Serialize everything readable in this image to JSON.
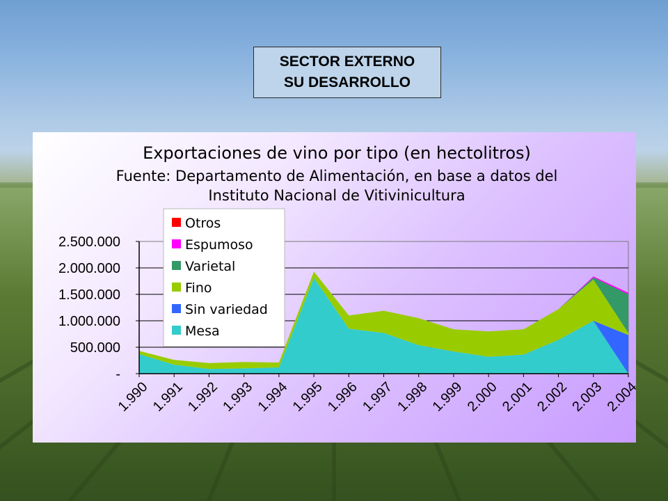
{
  "slide": {
    "heading_line1": "SECTOR EXTERNO",
    "heading_line2": "SU DESARROLLO"
  },
  "colors": {
    "Otros": "#ff0000",
    "Espumoso": "#ff00ff",
    "Varietal": "#339966",
    "Fino": "#99cc00",
    "Sin variedad": "#3366ff",
    "Mesa": "#33cccc"
  },
  "chart_data": {
    "type": "area",
    "stacked": true,
    "title": "Exportaciones de vino por tipo (en hectolitros)",
    "subtitle_line1": "Fuente: Departamento de Alimentación, en base a datos del",
    "subtitle_line2": "Instituto Nacional de Vitivinicultura",
    "categories": [
      "1.990",
      "1.991",
      "1.992",
      "1.993",
      "1.994",
      "1.995",
      "1.996",
      "1.997",
      "1.998",
      "1.999",
      "2.000",
      "2.001",
      "2.002",
      "2.003",
      "2.004"
    ],
    "y_ticks": [
      "-",
      "500.000",
      "1.000.000",
      "1.500.000",
      "2.000.000",
      "2.500.000"
    ],
    "ylim": [
      0,
      2500000
    ],
    "legend_position": "top-left",
    "legend_order": [
      "Otros",
      "Espumoso",
      "Varietal",
      "Fino",
      "Sin variedad",
      "Mesa"
    ],
    "series": [
      {
        "name": "Mesa",
        "values": [
          370000,
          170000,
          90000,
          100000,
          120000,
          1810000,
          850000,
          770000,
          540000,
          420000,
          320000,
          360000,
          640000,
          1000000,
          0
        ]
      },
      {
        "name": "Sin variedad",
        "values": [
          0,
          0,
          0,
          0,
          0,
          0,
          0,
          0,
          0,
          0,
          0,
          0,
          0,
          0,
          730000
        ]
      },
      {
        "name": "Fino",
        "values": [
          60000,
          90000,
          110000,
          120000,
          90000,
          120000,
          250000,
          420000,
          510000,
          420000,
          480000,
          480000,
          580000,
          780000,
          40000
        ]
      },
      {
        "name": "Varietal",
        "values": [
          0,
          0,
          0,
          0,
          0,
          0,
          0,
          0,
          0,
          0,
          0,
          0,
          0,
          40000,
          730000
        ]
      },
      {
        "name": "Espumoso",
        "values": [
          0,
          0,
          0,
          0,
          0,
          0,
          0,
          0,
          0,
          0,
          0,
          0,
          0,
          20000,
          30000
        ]
      },
      {
        "name": "Otros",
        "values": [
          0,
          0,
          0,
          0,
          0,
          0,
          0,
          0,
          0,
          0,
          0,
          0,
          0,
          0,
          0
        ]
      }
    ]
  }
}
